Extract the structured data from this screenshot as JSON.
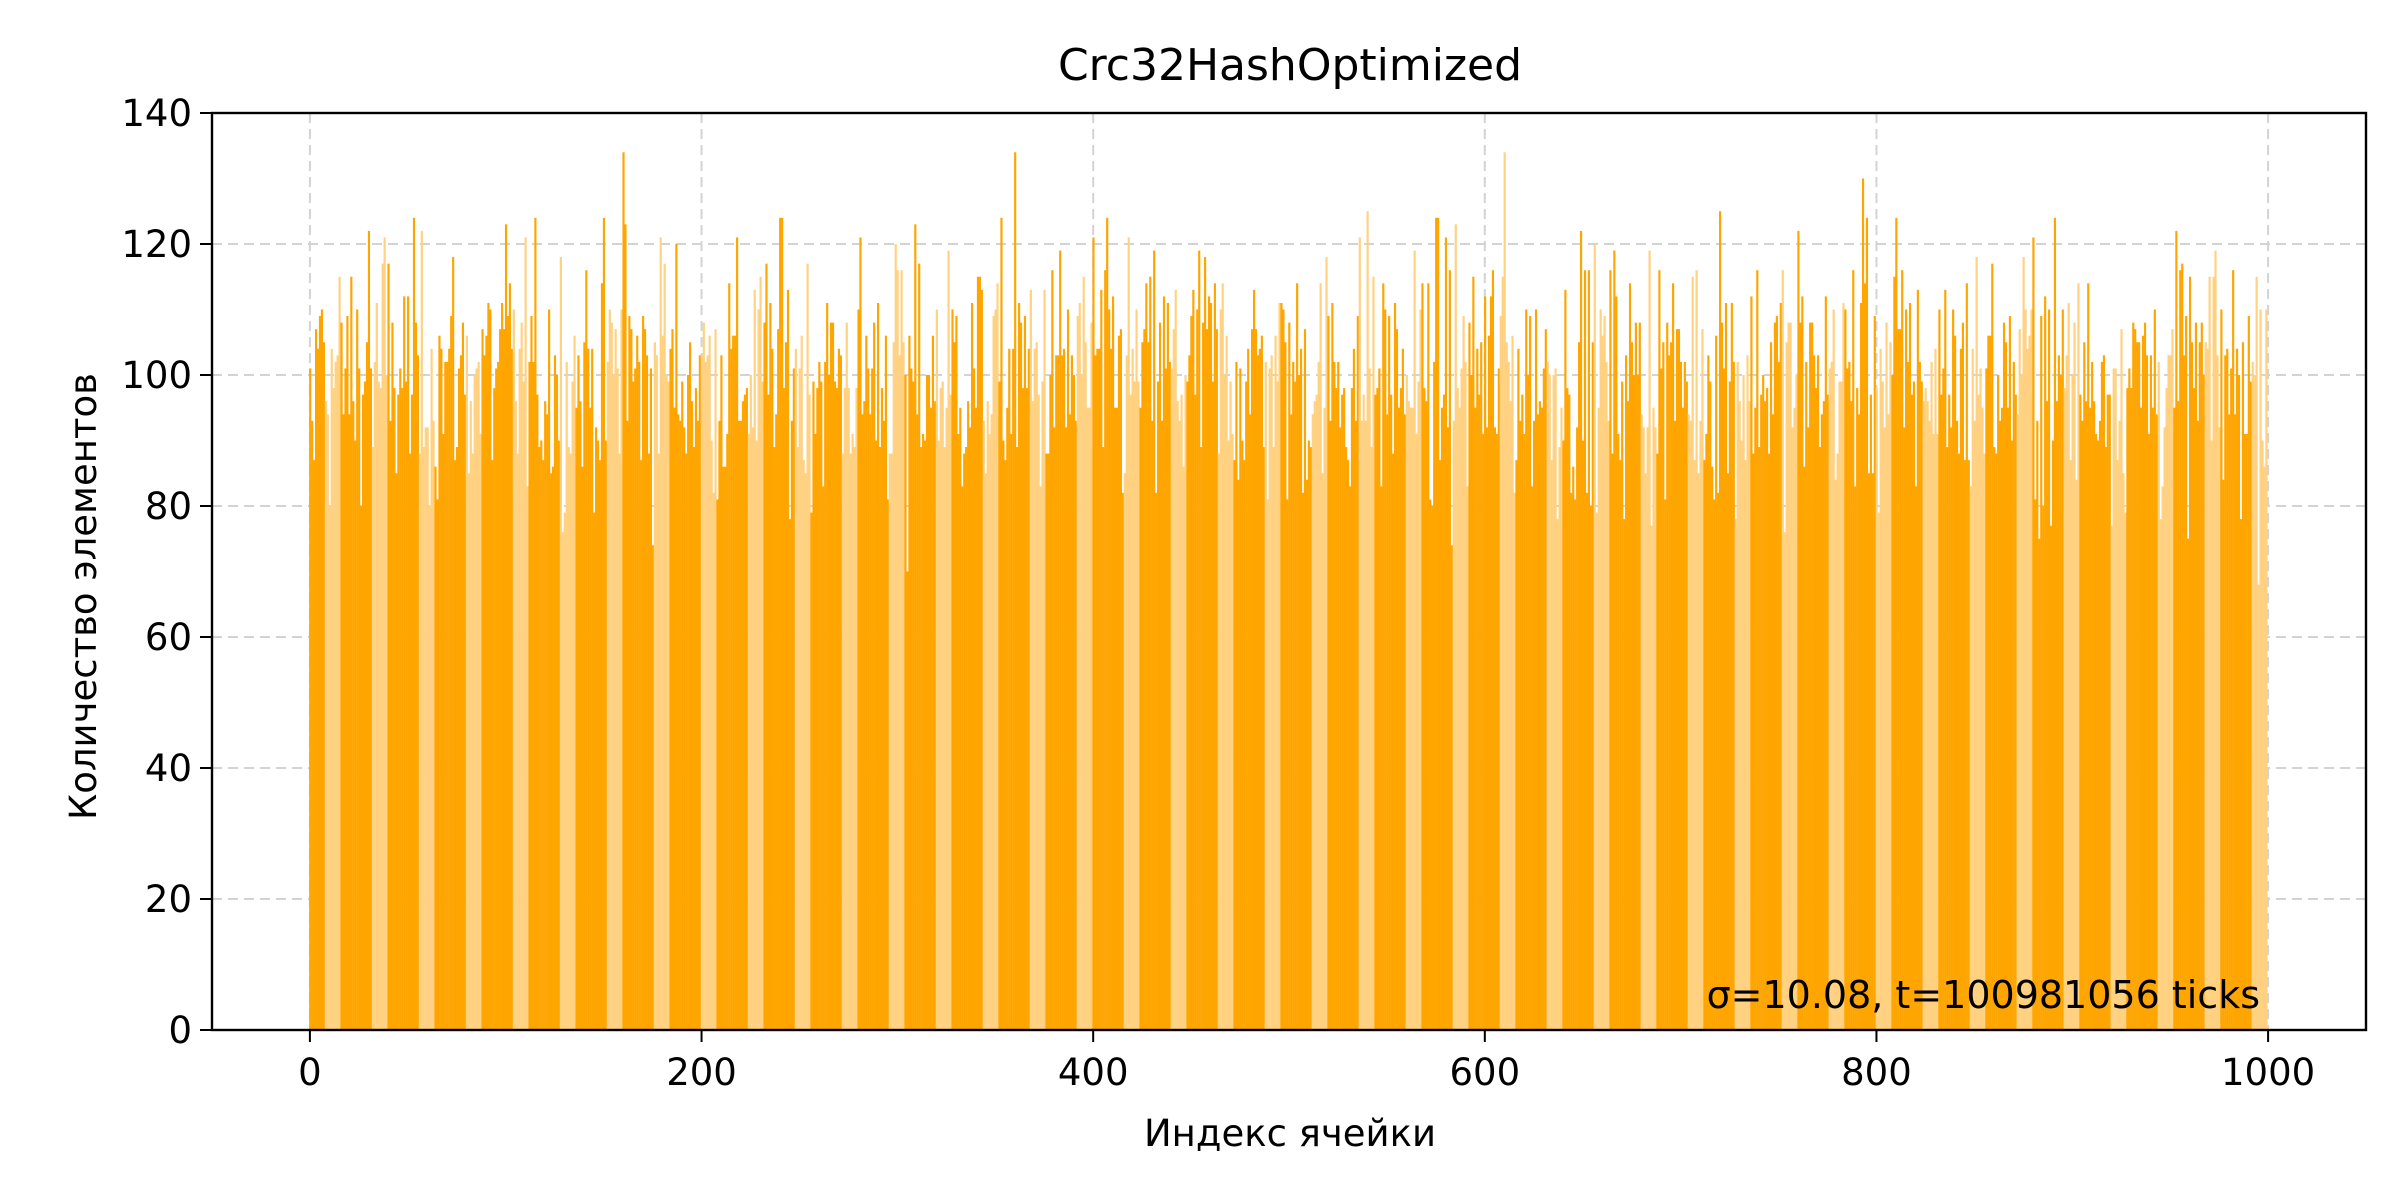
{
  "chart_data": {
    "type": "bar",
    "title": "Crc32HashOptimized",
    "xlabel": "Индекс ячейки",
    "ylabel": "Количество элементов",
    "annotation": "σ=10.08, t=100981056 ticks",
    "xlim": [
      -50,
      1050
    ],
    "ylim": [
      0,
      140
    ],
    "xticks": [
      0,
      200,
      400,
      600,
      800,
      1000
    ],
    "yticks": [
      0,
      20,
      40,
      60,
      80,
      100,
      120,
      140
    ],
    "grid": true,
    "bar_count": 1000,
    "bar_width": 0.8,
    "mean": 100,
    "std": 10.08,
    "colors": {
      "bar": "#FFA500",
      "bar_light": "#FFD180",
      "grid": "#d3d3d3",
      "axis": "#000000"
    },
    "series": [
      {
        "values_sample": {
          "x": [
            0,
            1,
            2,
            3,
            5,
            30,
            38,
            100,
            160,
            161,
            181,
            240,
            300,
            305,
            360,
            400,
            457,
            540,
            580,
            610,
            615,
            720,
            760,
            793,
            810,
            880,
            999
          ],
          "y": [
            101,
            93,
            87,
            107,
            109,
            122,
            121,
            123,
            134,
            123,
            117,
            124,
            116,
            70,
            134,
            121,
            118,
            125,
            121,
            134,
            82,
            125,
            122,
            130,
            124,
            121,
            110
          ]
        }
      }
    ]
  }
}
